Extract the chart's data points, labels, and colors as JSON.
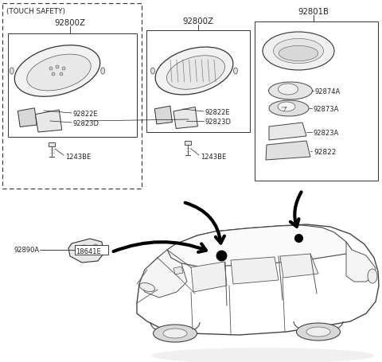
{
  "bg_color": "#ffffff",
  "lc": "#222222",
  "box1_touch": "(TOUCH SAFETY)",
  "box1_partno": "92800Z",
  "box2_partno": "92800Z",
  "box3_partno": "92801B",
  "parts_left1": [
    "92822E",
    "92823D"
  ],
  "parts_left2": [
    "92822E",
    "92823D"
  ],
  "parts_right": [
    "92874A",
    "92873A",
    "92823A",
    "92822"
  ],
  "screw_label": "1243BE",
  "bot_label1": "92890A",
  "bot_label2": "18641E",
  "fs": 6.8,
  "fs_sm": 6.0
}
